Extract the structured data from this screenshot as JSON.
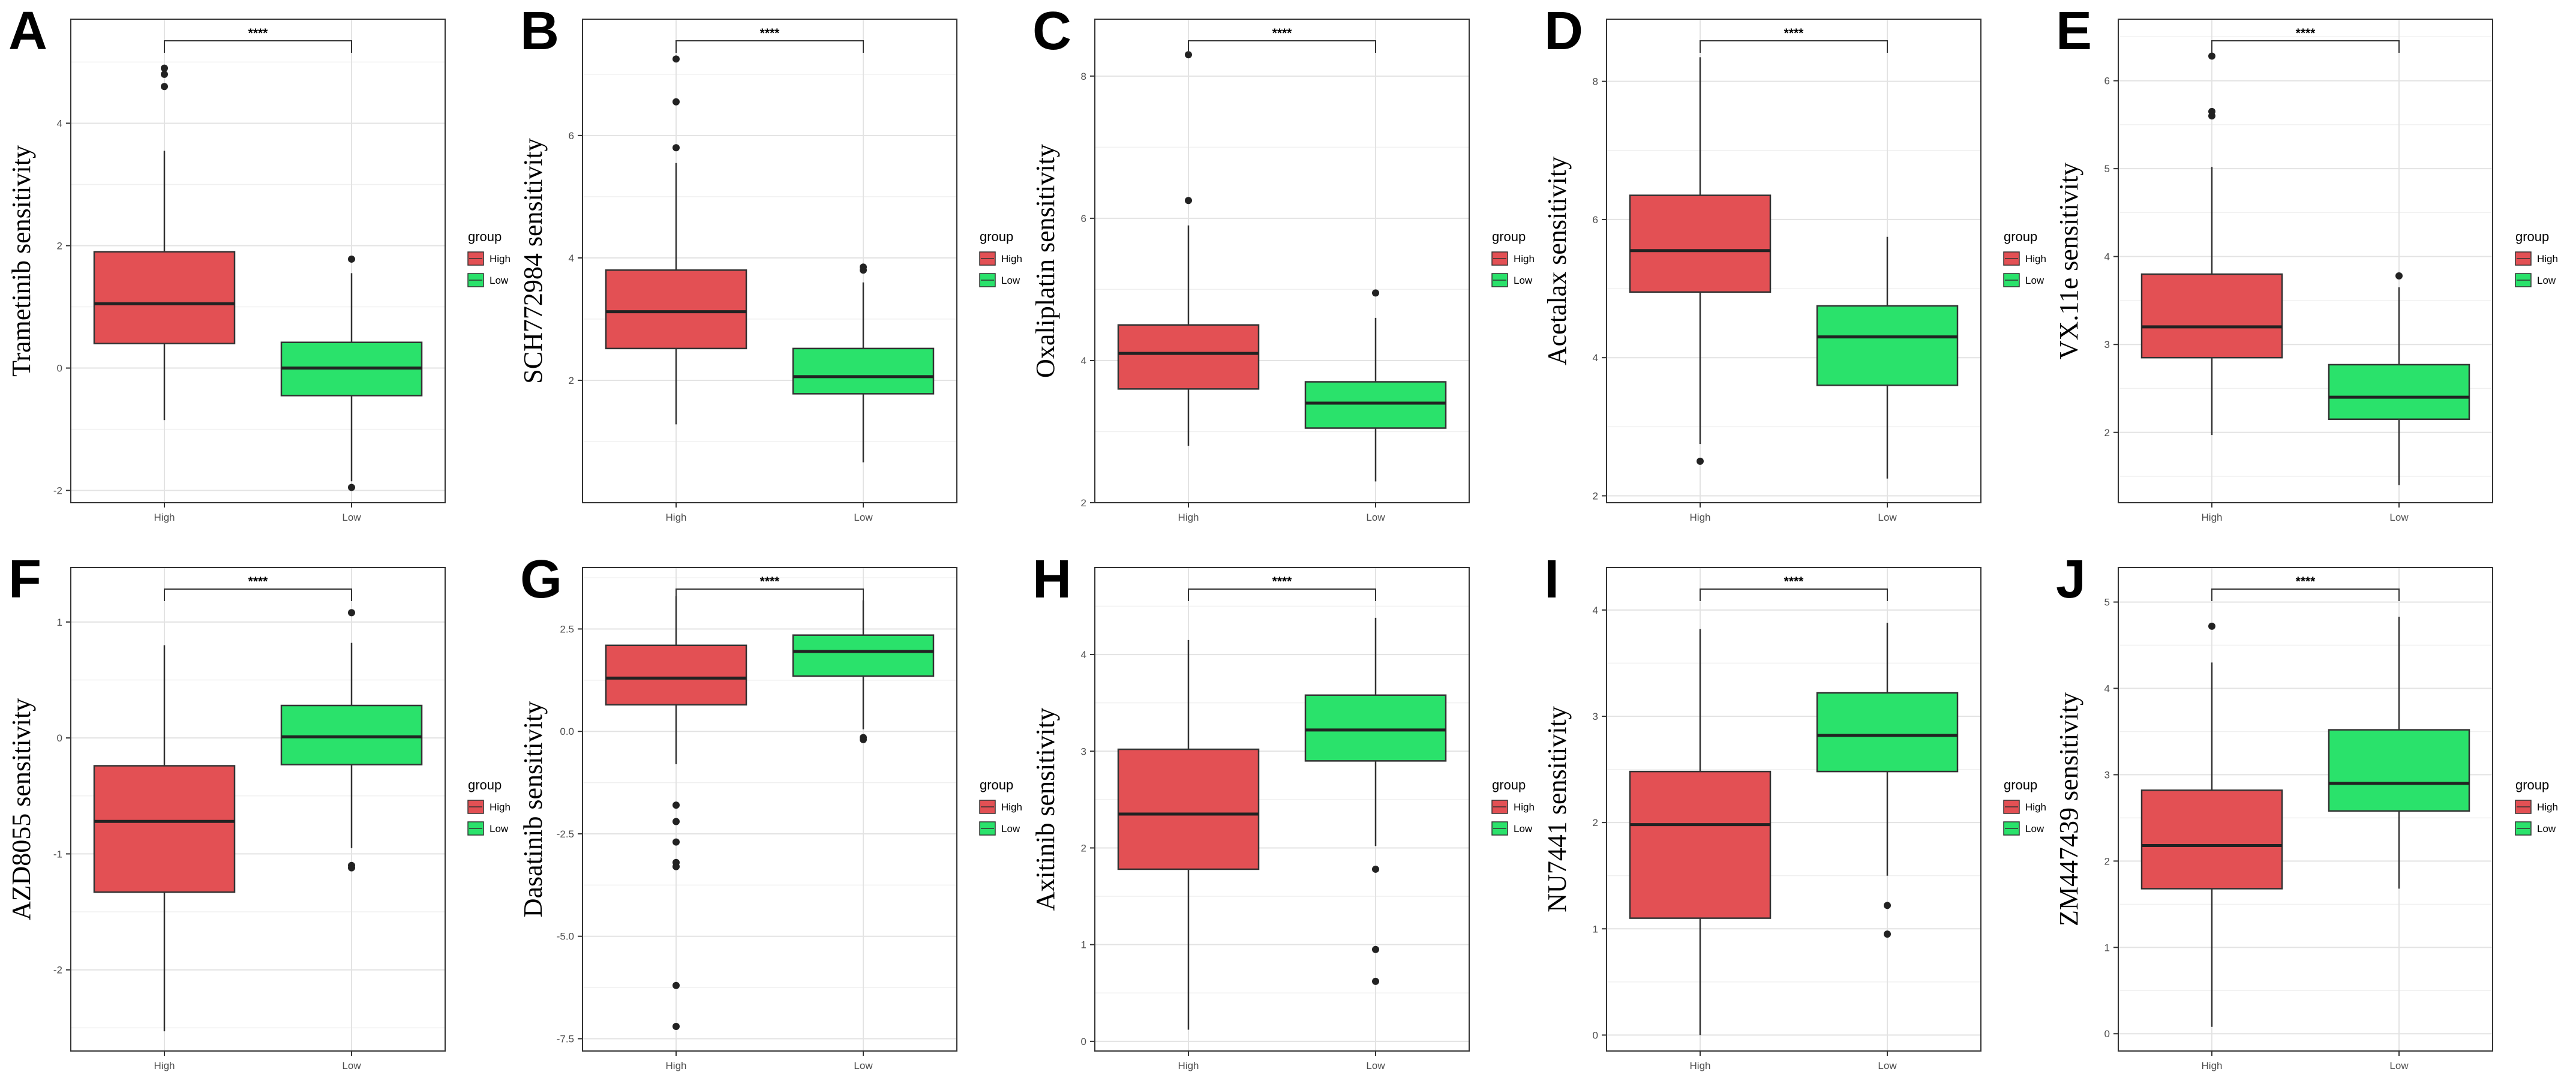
{
  "figure": {
    "legend_title": "group",
    "group_names": [
      "High",
      "Low"
    ],
    "group_colors": [
      "#e35054",
      "#2ae26b"
    ],
    "significance": "****"
  },
  "chart_data": [
    {
      "type": "boxplot",
      "panel": "A",
      "ylabel": "Trametinib sensitivity",
      "categories": [
        "High",
        "Low"
      ],
      "yticks": [
        -2,
        0,
        2,
        4
      ],
      "ylim": [
        -2.2,
        5.7
      ],
      "boxes": [
        {
          "q1": 0.4,
          "median": 1.05,
          "q3": 1.9,
          "whisker_low": -0.85,
          "whisker_high": 3.55,
          "outliers": [
            4.6,
            4.8,
            4.9
          ]
        },
        {
          "q1": -0.45,
          "median": 0.0,
          "q3": 0.42,
          "whisker_low": -1.85,
          "whisker_high": 1.55,
          "outliers": [
            1.78,
            -1.95
          ]
        }
      ]
    },
    {
      "type": "boxplot",
      "panel": "B",
      "ylabel": "SCH772984 sensitivity",
      "categories": [
        "High",
        "Low"
      ],
      "yticks": [
        2,
        4,
        6
      ],
      "ylim": [
        0.0,
        7.9
      ],
      "boxes": [
        {
          "q1": 2.52,
          "median": 3.12,
          "q3": 3.8,
          "whisker_low": 1.28,
          "whisker_high": 5.55,
          "outliers": [
            5.8,
            6.55,
            7.25
          ]
        },
        {
          "q1": 1.78,
          "median": 2.06,
          "q3": 2.52,
          "whisker_low": 0.66,
          "whisker_high": 3.6,
          "outliers": [
            3.8,
            3.85
          ]
        }
      ]
    },
    {
      "type": "boxplot",
      "panel": "C",
      "ylabel": "Oxaliplatin sensitivity",
      "categories": [
        "High",
        "Low"
      ],
      "yticks": [
        2,
        4,
        6,
        8
      ],
      "ylim": [
        2.0,
        8.8
      ],
      "boxes": [
        {
          "q1": 3.6,
          "median": 4.1,
          "q3": 4.5,
          "whisker_low": 2.8,
          "whisker_high": 5.9,
          "outliers": [
            6.25,
            8.3
          ]
        },
        {
          "q1": 3.05,
          "median": 3.4,
          "q3": 3.7,
          "whisker_low": 2.3,
          "whisker_high": 4.6,
          "outliers": [
            4.95
          ]
        }
      ]
    },
    {
      "type": "boxplot",
      "panel": "D",
      "ylabel": "Acetalax sensitivity",
      "categories": [
        "High",
        "Low"
      ],
      "yticks": [
        2,
        4,
        6,
        8
      ],
      "ylim": [
        1.9,
        8.9
      ],
      "boxes": [
        {
          "q1": 4.95,
          "median": 5.55,
          "q3": 6.35,
          "whisker_low": 2.75,
          "whisker_high": 8.35,
          "outliers": [
            2.5
          ]
        },
        {
          "q1": 3.6,
          "median": 4.3,
          "q3": 4.75,
          "whisker_low": 2.25,
          "whisker_high": 5.75,
          "outliers": []
        }
      ]
    },
    {
      "type": "boxplot",
      "panel": "E",
      "ylabel": "VX.11e sensitivity",
      "categories": [
        "High",
        "Low"
      ],
      "yticks": [
        2,
        3,
        4,
        5,
        6
      ],
      "ylim": [
        1.2,
        6.7
      ],
      "boxes": [
        {
          "q1": 2.85,
          "median": 3.2,
          "q3": 3.8,
          "whisker_low": 1.97,
          "whisker_high": 5.02,
          "outliers": [
            5.6,
            5.65,
            6.28
          ]
        },
        {
          "q1": 2.15,
          "median": 2.4,
          "q3": 2.77,
          "whisker_low": 1.4,
          "whisker_high": 3.65,
          "outliers": [
            3.78
          ]
        }
      ]
    },
    {
      "type": "boxplot",
      "panel": "F",
      "ylabel": "AZD8055 sensitivity",
      "categories": [
        "High",
        "Low"
      ],
      "yticks": [
        -2,
        -1,
        0,
        1
      ],
      "ylim": [
        -2.7,
        1.47
      ],
      "boxes": [
        {
          "q1": -1.33,
          "median": -0.72,
          "q3": -0.24,
          "whisker_low": -2.53,
          "whisker_high": 0.8,
          "outliers": []
        },
        {
          "q1": -0.23,
          "median": 0.01,
          "q3": 0.28,
          "whisker_low": -0.95,
          "whisker_high": 0.82,
          "outliers": [
            1.08,
            -1.1,
            -1.12
          ]
        }
      ]
    },
    {
      "type": "boxplot",
      "panel": "G",
      "ylabel": "Dasatinib sensitivity",
      "categories": [
        "High",
        "Low"
      ],
      "yticks": [
        -7.5,
        -5.0,
        -2.5,
        0.0,
        2.5
      ],
      "ylim": [
        -7.8,
        4.0
      ],
      "boxes": [
        {
          "q1": 0.65,
          "median": 1.3,
          "q3": 2.1,
          "whisker_low": -0.8,
          "whisker_high": 3.3,
          "outliers": [
            -1.8,
            -2.2,
            -2.7,
            -3.2,
            -3.3,
            -6.2,
            -7.2
          ]
        },
        {
          "q1": 1.35,
          "median": 1.95,
          "q3": 2.35,
          "whisker_low": 0.05,
          "whisker_high": 3.2,
          "outliers": [
            -0.15,
            -0.2
          ]
        }
      ]
    },
    {
      "type": "boxplot",
      "panel": "H",
      "ylabel": "Axitinib sensitivity",
      "categories": [
        "High",
        "Low"
      ],
      "yticks": [
        0,
        1,
        2,
        3,
        4
      ],
      "ylim": [
        -0.1,
        4.9
      ],
      "boxes": [
        {
          "q1": 1.78,
          "median": 2.35,
          "q3": 3.02,
          "whisker_low": 0.12,
          "whisker_high": 4.15,
          "outliers": []
        },
        {
          "q1": 2.9,
          "median": 3.22,
          "q3": 3.58,
          "whisker_low": 2.02,
          "whisker_high": 4.38,
          "outliers": [
            1.78,
            0.95,
            0.62
          ]
        }
      ]
    },
    {
      "type": "boxplot",
      "panel": "I",
      "ylabel": "NU7441 sensitivity",
      "categories": [
        "High",
        "Low"
      ],
      "yticks": [
        0,
        1,
        2,
        3,
        4
      ],
      "ylim": [
        -0.15,
        4.4
      ],
      "boxes": [
        {
          "q1": 1.1,
          "median": 1.98,
          "q3": 2.48,
          "whisker_low": 0.0,
          "whisker_high": 3.82,
          "outliers": []
        },
        {
          "q1": 2.48,
          "median": 2.82,
          "q3": 3.22,
          "whisker_low": 1.5,
          "whisker_high": 3.88,
          "outliers": [
            1.22,
            0.95
          ]
        }
      ]
    },
    {
      "type": "boxplot",
      "panel": "J",
      "ylabel": "ZM447439 sensitivity",
      "categories": [
        "High",
        "Low"
      ],
      "yticks": [
        0,
        1,
        2,
        3,
        4,
        5
      ],
      "ylim": [
        -0.2,
        5.4
      ],
      "boxes": [
        {
          "q1": 1.68,
          "median": 2.18,
          "q3": 2.82,
          "whisker_low": 0.08,
          "whisker_high": 4.3,
          "outliers": [
            4.72
          ]
        },
        {
          "q1": 2.58,
          "median": 2.9,
          "q3": 3.52,
          "whisker_low": 1.68,
          "whisker_high": 4.83,
          "outliers": []
        }
      ]
    }
  ]
}
